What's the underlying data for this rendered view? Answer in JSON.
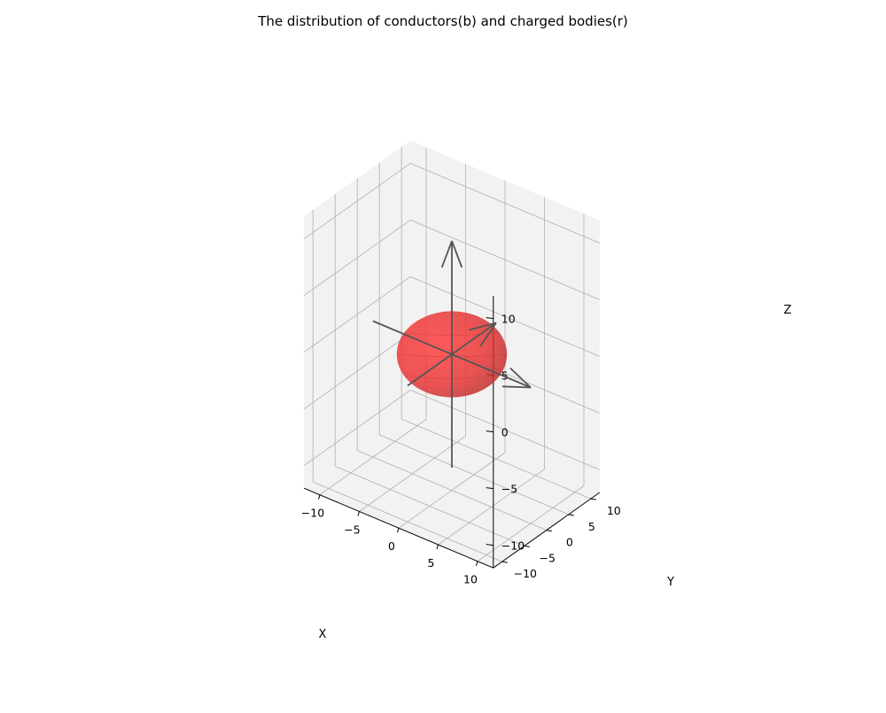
{
  "chart_data": {
    "type": "3d-surface",
    "title": "The distribution of conductors(b) and charged bodies(r)",
    "xlabel": "X",
    "ylabel": "Y",
    "zlabel": "Z",
    "xlim": [
      -12,
      12
    ],
    "ylim": [
      -12,
      12
    ],
    "zlim": [
      -12,
      12
    ],
    "xticks": [
      -10,
      -5,
      0,
      5,
      10
    ],
    "yticks": [
      -10,
      -5,
      0,
      5,
      10
    ],
    "zticks": [
      -10,
      -5,
      0,
      5,
      10
    ],
    "xtick_labels": [
      "−10",
      "−5",
      "0",
      "5",
      "10"
    ],
    "ytick_labels": [
      "−10",
      "−5",
      "0",
      "5",
      "10"
    ],
    "ztick_labels": [
      "−10",
      "−5",
      "0",
      "5",
      "10"
    ],
    "grid": true,
    "pane_color": "#f2f2f2",
    "grid_color": "#b0b0b0",
    "bodies": [
      {
        "name": "charged body",
        "shape": "sphere",
        "center": [
          0,
          0,
          0
        ],
        "radius": 3.2,
        "color": "#ff2222",
        "opacity": 0.82
      }
    ],
    "arrows": [
      {
        "name": "x-arrow",
        "from": [
          -10,
          0,
          0
        ],
        "to": [
          10,
          0,
          0
        ]
      },
      {
        "name": "y-arrow",
        "from": [
          0,
          -10,
          0
        ],
        "to": [
          0,
          10,
          0
        ]
      },
      {
        "name": "z-arrow",
        "from": [
          0,
          0,
          -10
        ],
        "to": [
          0,
          0,
          10
        ]
      }
    ],
    "arrow_color": "#555555"
  }
}
